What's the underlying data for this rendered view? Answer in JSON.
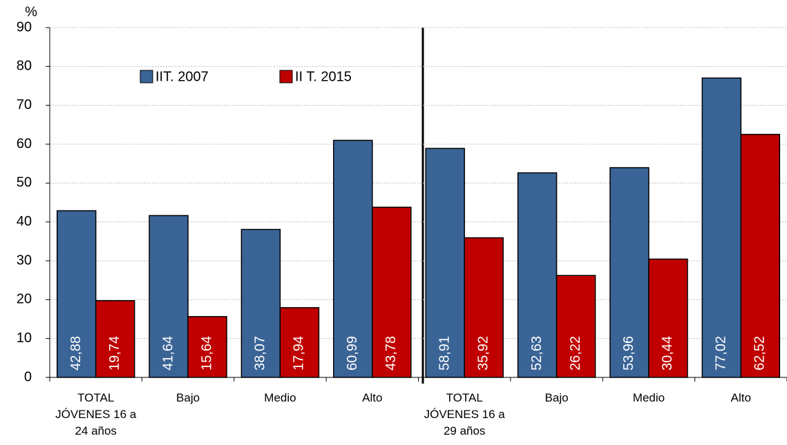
{
  "chart_data": {
    "type": "bar",
    "y_label": "%",
    "categories": [
      "TOTAL JÓVENES 16 a 24 años",
      "Bajo",
      "Medio",
      "Alto",
      "TOTAL JÓVENES 16 a 29 años",
      "Bajo",
      "Medio",
      "Alto"
    ],
    "series": [
      {
        "name": "IIT. 2007",
        "color": "#3a6496",
        "values": [
          42.88,
          41.64,
          38.07,
          60.99,
          58.91,
          52.63,
          53.96,
          77.02
        ],
        "value_labels": [
          "42,88",
          "41,64",
          "38,07",
          "60,99",
          "58,91",
          "52,63",
          "53,96",
          "77,02"
        ]
      },
      {
        "name": "II T. 2015",
        "color": "#c00000",
        "values": [
          19.74,
          15.64,
          17.94,
          43.78,
          35.92,
          26.22,
          30.44,
          62.52
        ],
        "value_labels": [
          "19,74",
          "15,64",
          "17,94",
          "43,78",
          "35,92",
          "26,22",
          "30,44",
          "62,52"
        ]
      }
    ],
    "ylim": [
      0,
      90
    ],
    "yticks": [
      0,
      10,
      20,
      30,
      40,
      50,
      60,
      70,
      80,
      90
    ],
    "grid": true
  }
}
